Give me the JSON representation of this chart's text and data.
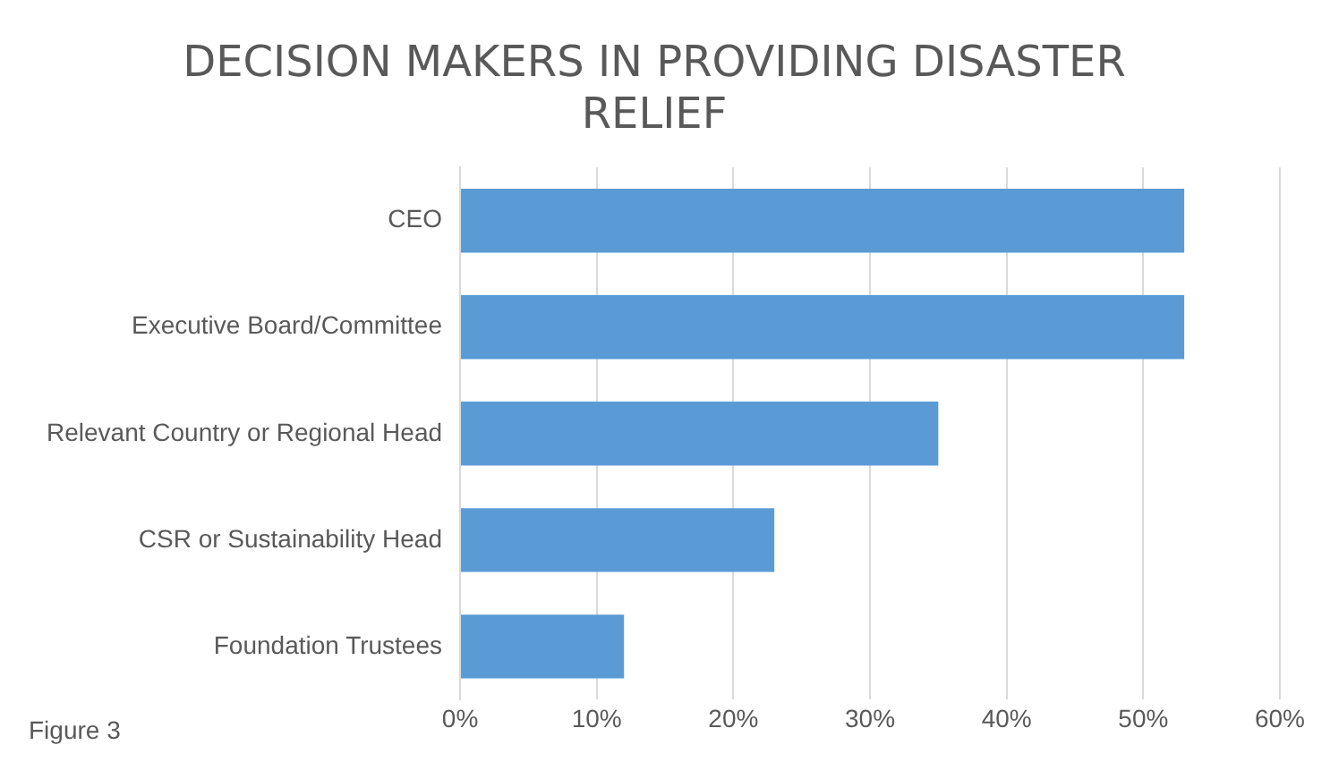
{
  "chart_data": {
    "type": "bar",
    "orientation": "horizontal",
    "title": "DECISION MAKERS IN PROVIDING DISASTER RELIEF",
    "categories": [
      "CEO",
      "Executive Board/Committee",
      "Relevant Country or Regional Head",
      "CSR or Sustainability Head",
      "Foundation Trustees"
    ],
    "values": [
      53,
      53,
      35,
      23,
      12
    ],
    "color": "#5b9bd5",
    "xlim": [
      0,
      60
    ],
    "xticks": [
      {
        "value": 0,
        "label": "0%"
      },
      {
        "value": 10,
        "label": "10%"
      },
      {
        "value": 20,
        "label": "20%"
      },
      {
        "value": 30,
        "label": "30%"
      },
      {
        "value": 40,
        "label": "40%"
      },
      {
        "value": 50,
        "label": "50%"
      },
      {
        "value": 60,
        "label": "60%"
      }
    ],
    "grid": "x",
    "legend": false,
    "annotations": [
      "Figure 3"
    ]
  }
}
